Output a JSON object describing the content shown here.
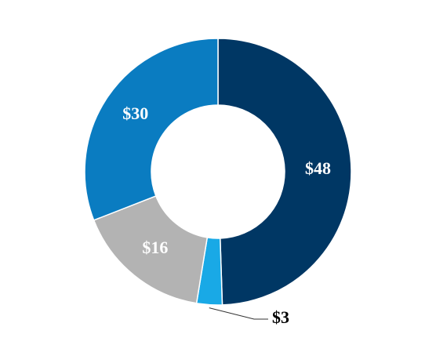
{
  "chart_data": {
    "type": "donut",
    "values": [
      48,
      3,
      16,
      30
    ],
    "value_labels": [
      "$48",
      "$3",
      "$16",
      "$30"
    ],
    "colors": [
      "#003764",
      "#19a9e6",
      "#b3b3b3",
      "#0a7cc1"
    ]
  }
}
